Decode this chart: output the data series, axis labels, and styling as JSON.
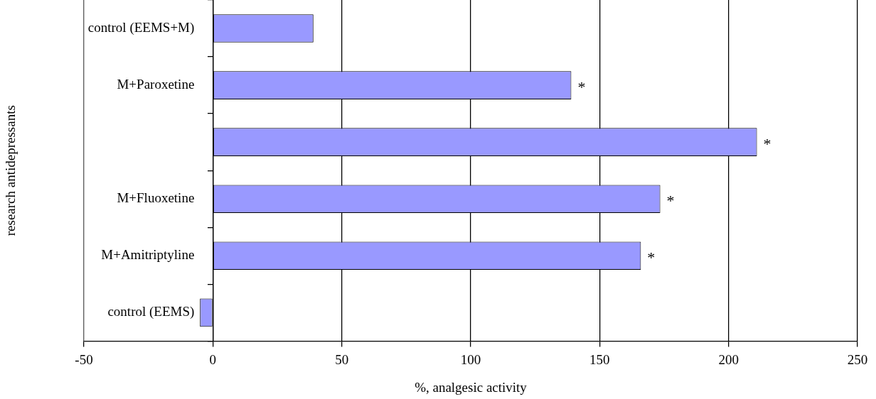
{
  "chart_data": {
    "type": "bar",
    "orientation": "horizontal",
    "categories": [
      "control (EEMS+M)",
      "M+Paroxetine",
      null,
      "M+Fluoxetine",
      "M+Amitriptyline",
      "control (EEMS)"
    ],
    "values": [
      39,
      139,
      211,
      173.5,
      166,
      -5
    ],
    "color": "#9999ff",
    "xlim": [
      -50,
      250
    ],
    "xticks": [
      -50,
      0,
      50,
      100,
      150,
      200,
      250
    ],
    "xlabel": "%, analgesic activity",
    "ylabel": "research antidepressants",
    "grid": "x",
    "annotations": [
      {
        "text": "*",
        "x": 139,
        "y": "M+Paroxetine"
      },
      {
        "text": "*",
        "x": 211
      },
      {
        "text": "*",
        "x": 173.5,
        "y": "M+Fluoxetine"
      },
      {
        "text": "*",
        "x": 166,
        "y": "M+Amitriptyline"
      }
    ]
  }
}
